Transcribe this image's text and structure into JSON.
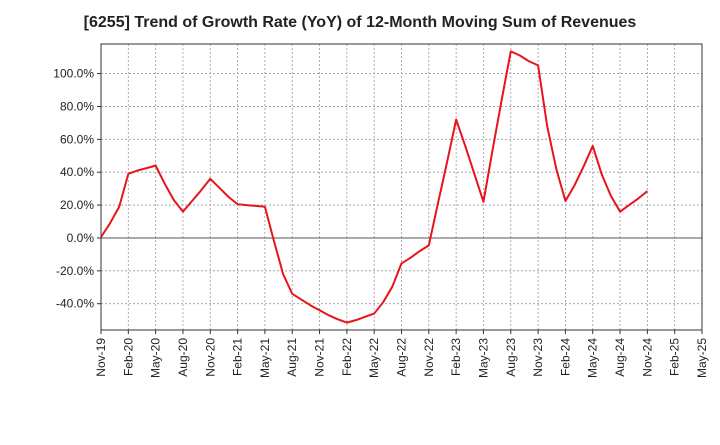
{
  "chart_data": {
    "type": "line",
    "title": "[6255]  Trend of Growth Rate (YoY) of 12-Month Moving Sum of Revenues",
    "xlabel": "",
    "ylabel": "",
    "ylim": [
      -56,
      118
    ],
    "yticks": [
      -40,
      -20,
      0,
      20,
      40,
      60,
      80,
      100
    ],
    "ytick_labels": [
      "-40.0%",
      "-20.0%",
      "0.0%",
      "20.0%",
      "40.0%",
      "60.0%",
      "80.0%",
      "100.0%"
    ],
    "xtick_labels": [
      "Nov-19",
      "Feb-20",
      "May-20",
      "Aug-20",
      "Nov-20",
      "Feb-21",
      "May-21",
      "Aug-21",
      "Nov-21",
      "Feb-22",
      "May-22",
      "Aug-22",
      "Nov-22",
      "Feb-23",
      "May-23",
      "Aug-23",
      "Nov-23",
      "Feb-24",
      "May-24",
      "Aug-24",
      "Nov-24",
      "Feb-25",
      "May-25"
    ],
    "grid": true,
    "series": [
      {
        "color": "#e8141c",
        "x": [
          "Nov-19",
          "Dec-19",
          "Jan-20",
          "Feb-20",
          "Mar-20",
          "Apr-20",
          "May-20",
          "Jun-20",
          "Jul-20",
          "Aug-20",
          "Sep-20",
          "Oct-20",
          "Nov-20",
          "Dec-20",
          "Jan-21",
          "Feb-21",
          "Mar-21",
          "Apr-21",
          "May-21",
          "Jun-21",
          "Jul-21",
          "Aug-21",
          "Sep-21",
          "Oct-21",
          "Nov-21",
          "Dec-21",
          "Jan-22",
          "Feb-22",
          "Mar-22",
          "Apr-22",
          "May-22",
          "Jun-22",
          "Jul-22",
          "Aug-22",
          "Sep-22",
          "Oct-22",
          "Nov-22",
          "Dec-22",
          "Jan-23",
          "Feb-23",
          "Mar-23",
          "Apr-23",
          "May-23",
          "Jun-23",
          "Jul-23",
          "Aug-23",
          "Sep-23",
          "Oct-23",
          "Nov-23",
          "Dec-23",
          "Jan-24",
          "Feb-24",
          "Mar-24",
          "Apr-24",
          "May-24",
          "Jun-24",
          "Jul-24",
          "Aug-24",
          "Sep-24",
          "Oct-24",
          "Nov-24"
        ],
        "values": [
          0.5,
          9,
          19,
          39,
          41,
          42.5,
          44,
          33,
          23,
          16,
          22.5,
          29,
          36,
          30.5,
          25,
          20.5,
          20,
          19.5,
          19,
          -2,
          -22,
          -34,
          -37.5,
          -41,
          -44,
          -47,
          -49.5,
          -51.5,
          -50,
          -48,
          -46,
          -39,
          -29.5,
          -15.5,
          -12,
          -8,
          -4.5,
          21,
          46,
          72,
          56,
          39,
          22,
          53.5,
          84,
          113.5,
          111,
          107.5,
          105,
          68,
          42,
          22.5,
          32,
          43.5,
          56,
          38.5,
          25.5,
          16,
          20,
          24,
          28.5
        ]
      }
    ]
  }
}
